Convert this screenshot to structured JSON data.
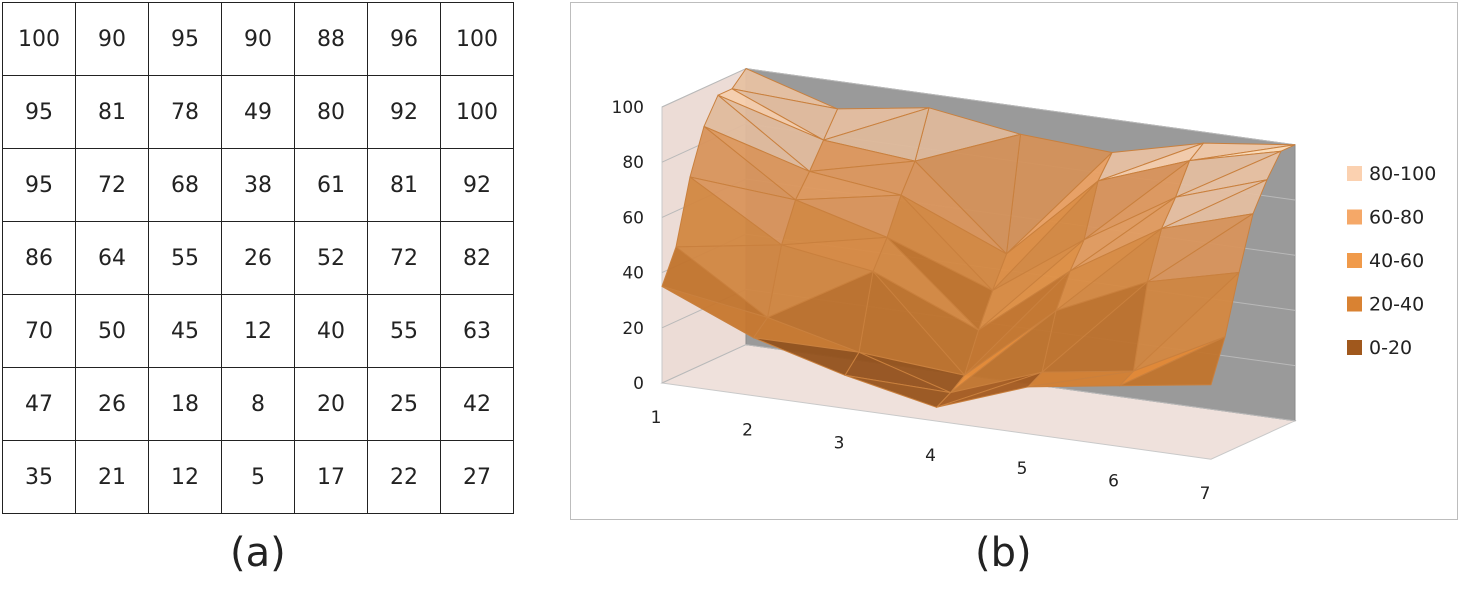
{
  "captions": {
    "a": "(a)",
    "b": "(b)"
  },
  "chart_data": [
    {
      "type": "table",
      "rows": [
        [
          100,
          90,
          95,
          90,
          88,
          96,
          100
        ],
        [
          95,
          81,
          78,
          49,
          80,
          92,
          100
        ],
        [
          95,
          72,
          68,
          38,
          61,
          81,
          92
        ],
        [
          86,
          64,
          55,
          26,
          52,
          72,
          82
        ],
        [
          70,
          50,
          45,
          12,
          40,
          55,
          63
        ],
        [
          47,
          26,
          18,
          8,
          20,
          25,
          42
        ],
        [
          35,
          21,
          12,
          5,
          17,
          22,
          27
        ]
      ]
    },
    {
      "type": "surface",
      "x_ticks": [
        "1",
        "2",
        "3",
        "4",
        "5",
        "6",
        "7"
      ],
      "z_ticks": [
        "0",
        "20",
        "40",
        "60",
        "80",
        "100"
      ],
      "zlim": [
        0,
        100
      ],
      "legend": [
        {
          "label": "80-100",
          "color": "#fbd1b0"
        },
        {
          "label": "60-80",
          "color": "#f5a868"
        },
        {
          "label": "40-60",
          "color": "#f09a4a"
        },
        {
          "label": "20-40",
          "color": "#d98232"
        },
        {
          "label": "0-20",
          "color": "#a0581d"
        }
      ],
      "legend_position": "right",
      "z": [
        [
          100,
          90,
          95,
          90,
          88,
          96,
          100
        ],
        [
          95,
          81,
          78,
          49,
          80,
          92,
          100
        ],
        [
          95,
          72,
          68,
          38,
          61,
          81,
          92
        ],
        [
          86,
          64,
          55,
          26,
          52,
          72,
          82
        ],
        [
          70,
          50,
          45,
          12,
          40,
          55,
          63
        ],
        [
          47,
          26,
          18,
          8,
          20,
          25,
          42
        ],
        [
          35,
          21,
          12,
          5,
          17,
          22,
          27
        ]
      ]
    }
  ]
}
